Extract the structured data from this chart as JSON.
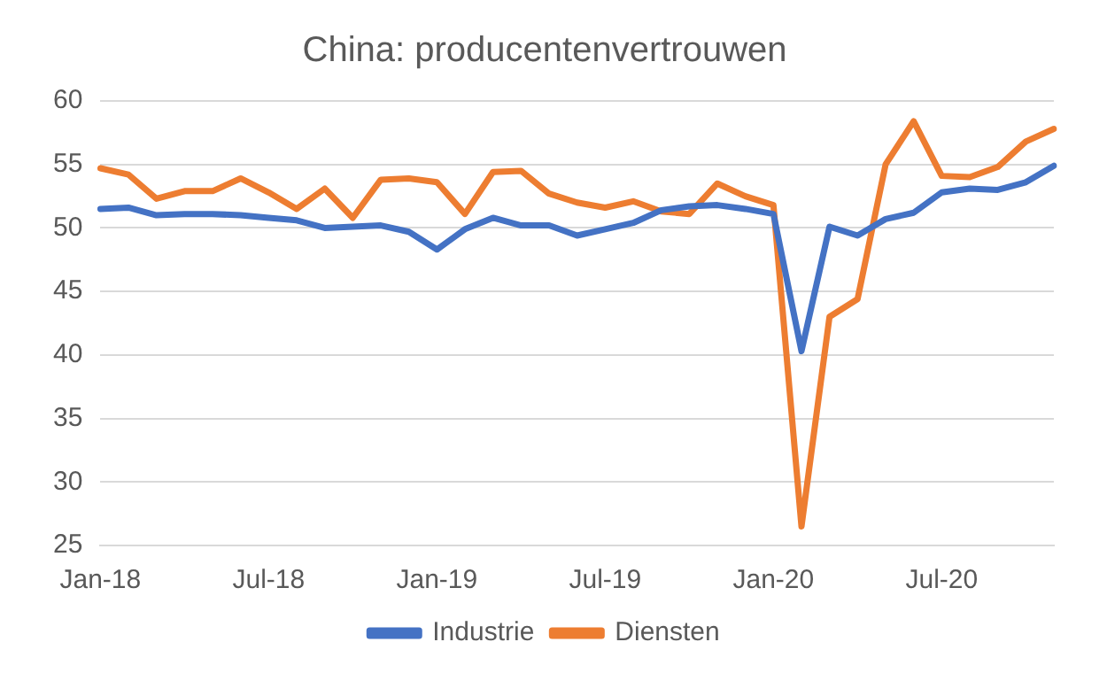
{
  "chart_data": {
    "type": "line",
    "title": "China: producentenvertrouwen",
    "categories": [
      "Jan-18",
      null,
      null,
      null,
      null,
      null,
      "Jul-18",
      null,
      null,
      null,
      null,
      null,
      "Jan-19",
      null,
      null,
      null,
      null,
      null,
      "Jul-19",
      null,
      null,
      null,
      null,
      null,
      "Jan-20",
      null,
      null,
      null,
      null,
      null,
      "Jul-20",
      null,
      null,
      null,
      null
    ],
    "series": [
      {
        "name": "Industrie",
        "color": "#4472c4",
        "values": [
          51.5,
          51.6,
          51.0,
          51.1,
          51.1,
          51.0,
          50.8,
          50.6,
          50.0,
          50.1,
          50.2,
          49.7,
          48.3,
          49.9,
          50.8,
          50.2,
          50.2,
          49.4,
          49.9,
          50.4,
          51.4,
          51.7,
          51.8,
          51.5,
          51.1,
          40.3,
          50.1,
          49.4,
          50.7,
          51.2,
          52.8,
          53.1,
          53.0,
          53.6,
          54.9
        ]
      },
      {
        "name": "Diensten",
        "color": "#ed7d31",
        "values": [
          54.7,
          54.2,
          52.3,
          52.9,
          52.9,
          53.9,
          52.8,
          51.5,
          53.1,
          50.8,
          53.8,
          53.9,
          53.6,
          51.1,
          54.4,
          54.5,
          52.7,
          52.0,
          51.6,
          52.1,
          51.3,
          51.1,
          53.5,
          52.5,
          51.8,
          26.5,
          43.0,
          44.4,
          55.0,
          58.4,
          54.1,
          54.0,
          54.8,
          56.8,
          57.8
        ]
      }
    ],
    "ylim": [
      25,
      60
    ],
    "yticks": [
      25,
      30,
      35,
      40,
      45,
      50,
      55,
      60
    ],
    "grid": "y",
    "legend": "bottom",
    "marker": "none",
    "line_style": "solid"
  }
}
